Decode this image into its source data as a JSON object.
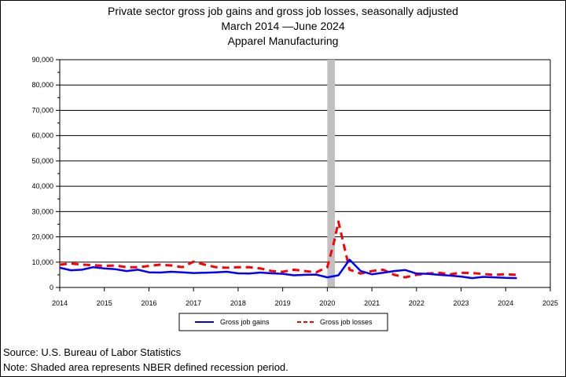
{
  "chart_data": {
    "type": "line",
    "title": "Private sector gross job gains and gross job losses, seasonally adjusted",
    "subtitle": "March 2014 —June 2024",
    "subtitle2": "Apparel Manufacturing",
    "xlabel": "",
    "ylabel": "",
    "xlim": [
      2014,
      2025
    ],
    "ylim": [
      0,
      90000
    ],
    "x_ticks": [
      "2014",
      "2015",
      "2016",
      "2017",
      "2018",
      "2019",
      "2020",
      "2021",
      "2022",
      "2023",
      "2024",
      "2025"
    ],
    "y_ticks": [
      "0",
      "10,000",
      "20,000",
      "30,000",
      "40,000",
      "50,000",
      "60,000",
      "70,000",
      "80,000",
      "90,000"
    ],
    "grid": true,
    "legend_position": "bottom",
    "recession": {
      "start": 2020.0,
      "end": 2020.17,
      "color": "#c0c0c0"
    },
    "series": [
      {
        "name": "Gross job gains",
        "color": "#0000ff",
        "style": "solid",
        "points": [
          [
            2014.0,
            7800
          ],
          [
            2014.25,
            6800
          ],
          [
            2014.5,
            7000
          ],
          [
            2014.75,
            8000
          ],
          [
            2015.0,
            7500
          ],
          [
            2015.25,
            7200
          ],
          [
            2015.5,
            6500
          ],
          [
            2015.75,
            7000
          ],
          [
            2016.0,
            6000
          ],
          [
            2016.25,
            5900
          ],
          [
            2016.5,
            6200
          ],
          [
            2016.75,
            6000
          ],
          [
            2017.0,
            5700
          ],
          [
            2017.25,
            5800
          ],
          [
            2017.5,
            6000
          ],
          [
            2017.75,
            6200
          ],
          [
            2018.0,
            5600
          ],
          [
            2018.25,
            5500
          ],
          [
            2018.5,
            5900
          ],
          [
            2018.75,
            5600
          ],
          [
            2019.0,
            5400
          ],
          [
            2019.25,
            4800
          ],
          [
            2019.5,
            5000
          ],
          [
            2019.75,
            5100
          ],
          [
            2020.0,
            4000
          ],
          [
            2020.25,
            4800
          ],
          [
            2020.5,
            11000
          ],
          [
            2020.75,
            6500
          ],
          [
            2021.0,
            5200
          ],
          [
            2021.25,
            5800
          ],
          [
            2021.5,
            6500
          ],
          [
            2021.75,
            6900
          ],
          [
            2022.0,
            5500
          ],
          [
            2022.25,
            5400
          ],
          [
            2022.5,
            5000
          ],
          [
            2022.75,
            4700
          ],
          [
            2023.0,
            4300
          ],
          [
            2023.25,
            3700
          ],
          [
            2023.5,
            4200
          ],
          [
            2023.75,
            4000
          ],
          [
            2024.0,
            3800
          ],
          [
            2024.25,
            3700
          ]
        ]
      },
      {
        "name": "Gross job losses",
        "color": "#ff0000",
        "style": "dashed",
        "points": [
          [
            2014.0,
            9000
          ],
          [
            2014.25,
            9500
          ],
          [
            2014.5,
            9000
          ],
          [
            2014.75,
            8800
          ],
          [
            2015.0,
            8500
          ],
          [
            2015.25,
            8700
          ],
          [
            2015.5,
            8000
          ],
          [
            2015.75,
            8000
          ],
          [
            2016.0,
            8500
          ],
          [
            2016.25,
            9000
          ],
          [
            2016.5,
            8700
          ],
          [
            2016.75,
            8000
          ],
          [
            2017.0,
            10200
          ],
          [
            2017.25,
            9000
          ],
          [
            2017.5,
            8000
          ],
          [
            2017.75,
            7800
          ],
          [
            2018.0,
            8000
          ],
          [
            2018.25,
            8000
          ],
          [
            2018.5,
            7500
          ],
          [
            2018.75,
            6500
          ],
          [
            2019.0,
            6200
          ],
          [
            2019.25,
            7000
          ],
          [
            2019.5,
            6500
          ],
          [
            2019.75,
            6000
          ],
          [
            2020.0,
            8000
          ],
          [
            2020.15,
            18000
          ],
          [
            2020.25,
            26000
          ],
          [
            2020.5,
            7000
          ],
          [
            2020.75,
            5500
          ],
          [
            2021.0,
            6500
          ],
          [
            2021.25,
            7000
          ],
          [
            2021.5,
            5000
          ],
          [
            2021.75,
            4000
          ],
          [
            2022.0,
            5000
          ],
          [
            2022.25,
            5500
          ],
          [
            2022.5,
            5800
          ],
          [
            2022.75,
            5200
          ],
          [
            2023.0,
            5800
          ],
          [
            2023.25,
            5700
          ],
          [
            2023.5,
            5300
          ],
          [
            2023.75,
            5000
          ],
          [
            2024.0,
            5200
          ],
          [
            2024.25,
            5000
          ]
        ]
      }
    ]
  },
  "footer": {
    "source": "Source: U.S. Bureau of Labor Statistics",
    "note": "Note: Shaded area represents NBER defined recession period."
  }
}
